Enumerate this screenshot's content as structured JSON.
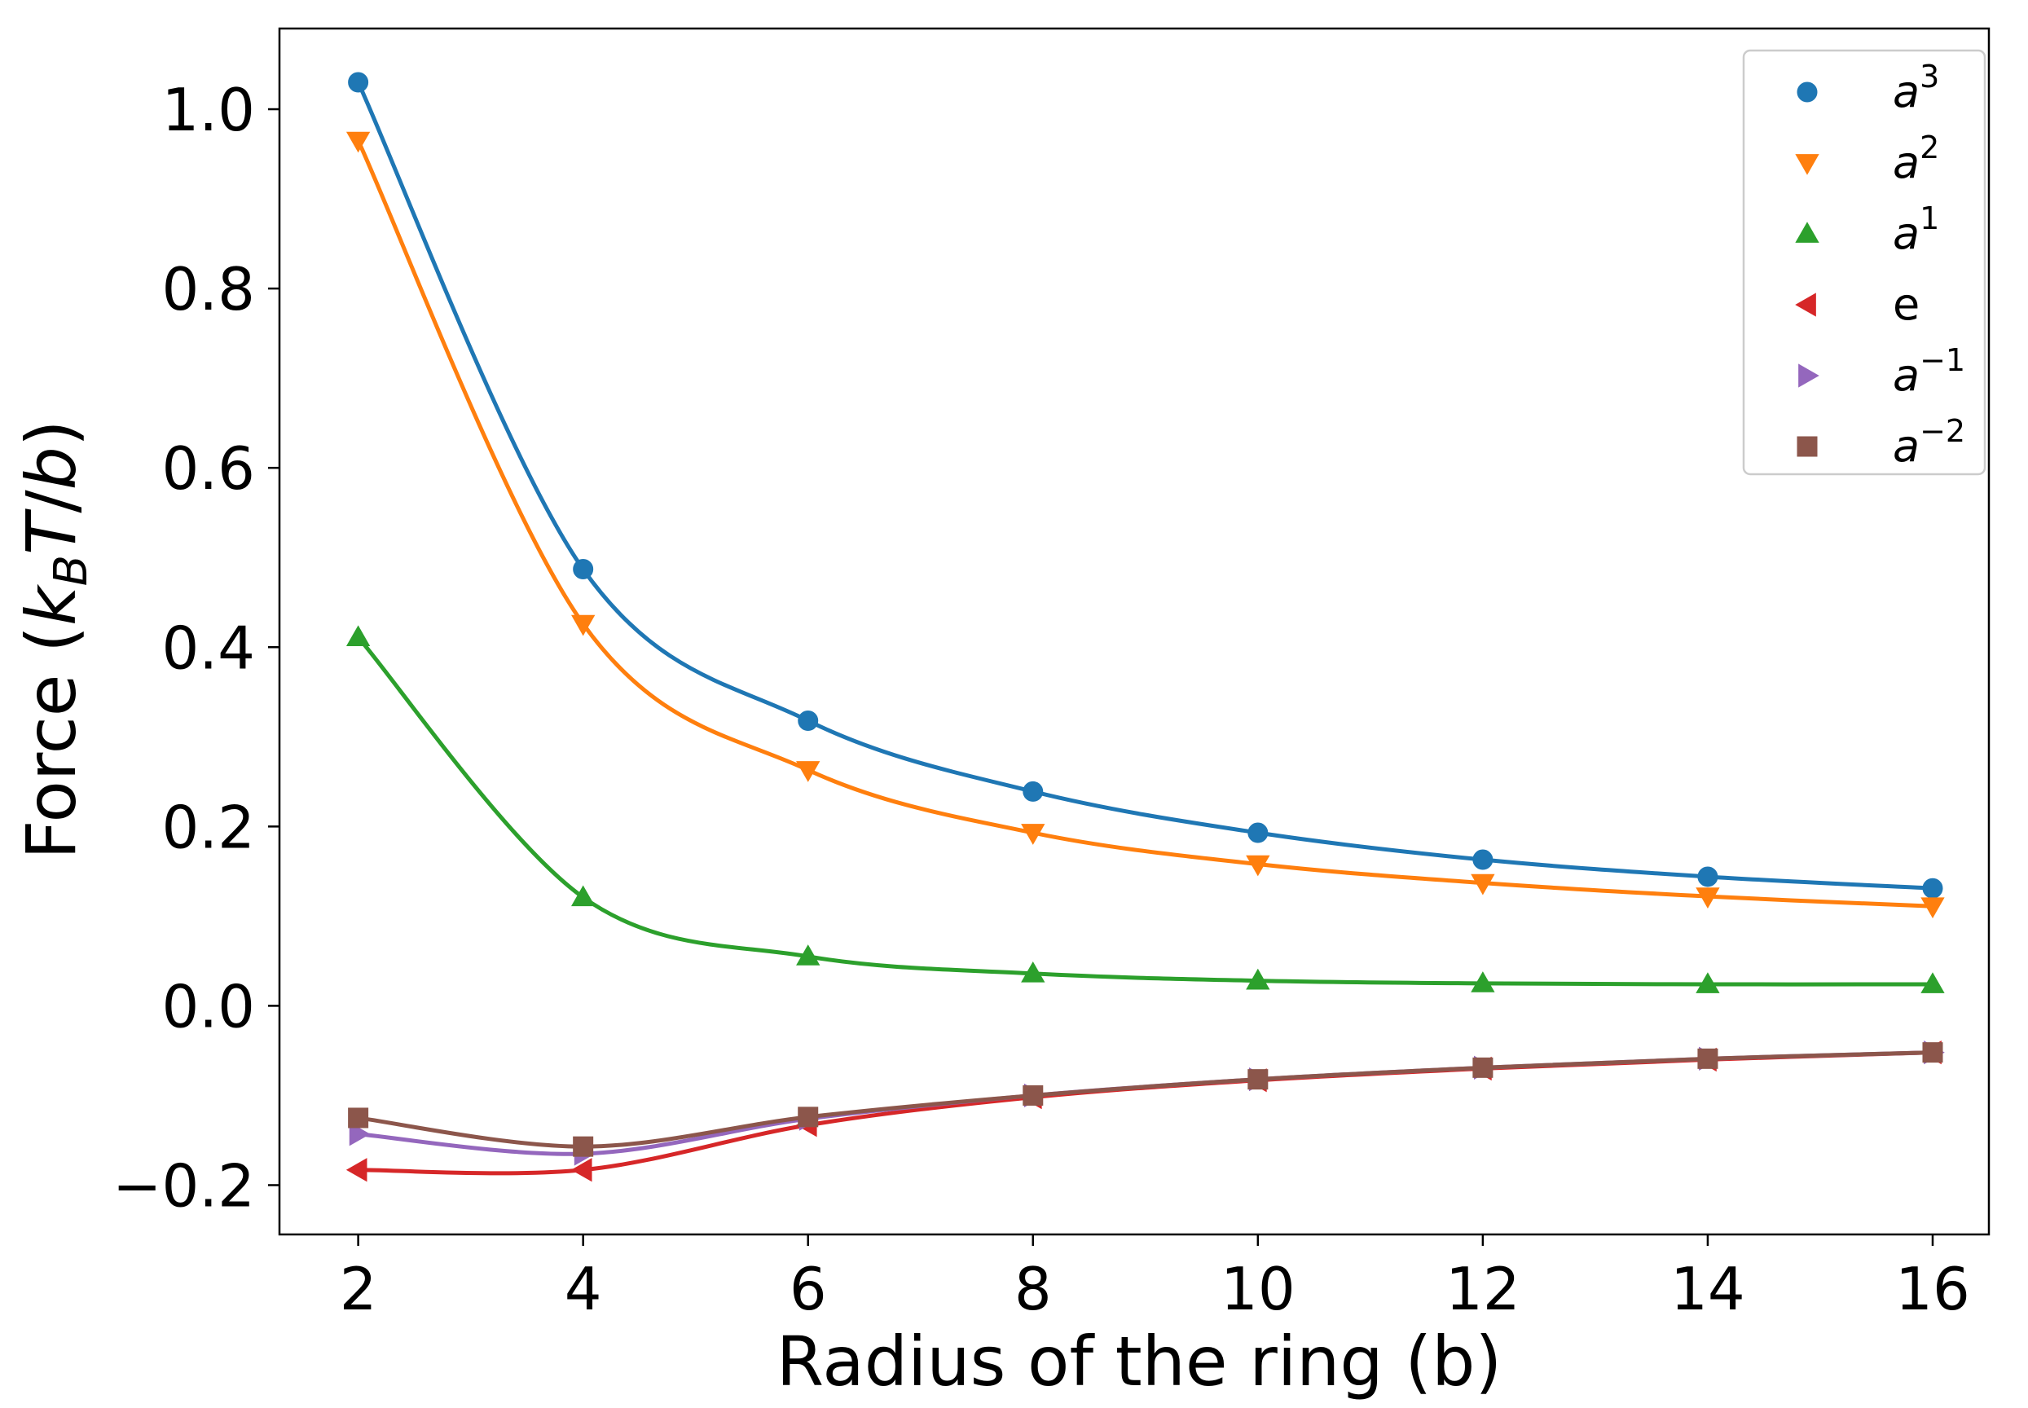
{
  "chart_data": {
    "type": "line",
    "title": "",
    "xlabel": "Radius of the ring (b)",
    "ylabel": {
      "prefix": "Force (",
      "k": "k",
      "k_sub": "B",
      "T": "T",
      "slash": "/",
      "b": "b",
      "suffix": ")"
    },
    "xlim": [
      1.3,
      16.5
    ],
    "ylim": [
      -0.255,
      1.09
    ],
    "xticks": [
      2,
      4,
      6,
      8,
      10,
      12,
      14,
      16
    ],
    "yticks": [
      -0.2,
      0.0,
      0.2,
      0.4,
      0.6,
      0.8,
      1.0
    ],
    "ytick_labels": [
      "−0.2",
      "0.0",
      "0.2",
      "0.4",
      "0.6",
      "0.8",
      "1.0"
    ],
    "grid": false,
    "legend_position": "top-right",
    "x": [
      2,
      4,
      6,
      8,
      10,
      12,
      14,
      16
    ],
    "series": [
      {
        "name": "a^3",
        "label_base": "a",
        "label_sup": "3",
        "color": "#1f77b4",
        "marker": "circle",
        "values": [
          1.03,
          0.487,
          0.318,
          0.239,
          0.193,
          0.163,
          0.144,
          0.131
        ]
      },
      {
        "name": "a^2",
        "label_base": "a",
        "label_sup": "2",
        "color": "#ff7f0e",
        "marker": "triangle-down",
        "values": [
          0.965,
          0.426,
          0.263,
          0.193,
          0.158,
          0.137,
          0.122,
          0.111
        ]
      },
      {
        "name": "a^1",
        "label_base": "a",
        "label_sup": "1",
        "color": "#2ca02c",
        "marker": "triangle-up",
        "values": [
          0.411,
          0.121,
          0.055,
          0.036,
          0.028,
          0.025,
          0.024,
          0.024
        ]
      },
      {
        "name": "e",
        "label_base": "e",
        "label_sup": "",
        "color": "#d62728",
        "marker": "triangle-left",
        "values": [
          -0.183,
          -0.183,
          -0.133,
          -0.102,
          -0.083,
          -0.07,
          -0.06,
          -0.052
        ]
      },
      {
        "name": "a^-1",
        "label_base": "a",
        "label_sup": "−1",
        "color": "#9467bd",
        "marker": "triangle-right",
        "values": [
          -0.143,
          -0.165,
          -0.126,
          -0.1,
          -0.082,
          -0.069,
          -0.059,
          -0.052
        ]
      },
      {
        "name": "a^-2",
        "label_base": "a",
        "label_sup": "−2",
        "color": "#8c564b",
        "marker": "square",
        "values": [
          -0.125,
          -0.157,
          -0.124,
          -0.1,
          -0.082,
          -0.069,
          -0.059,
          -0.052
        ]
      }
    ]
  }
}
